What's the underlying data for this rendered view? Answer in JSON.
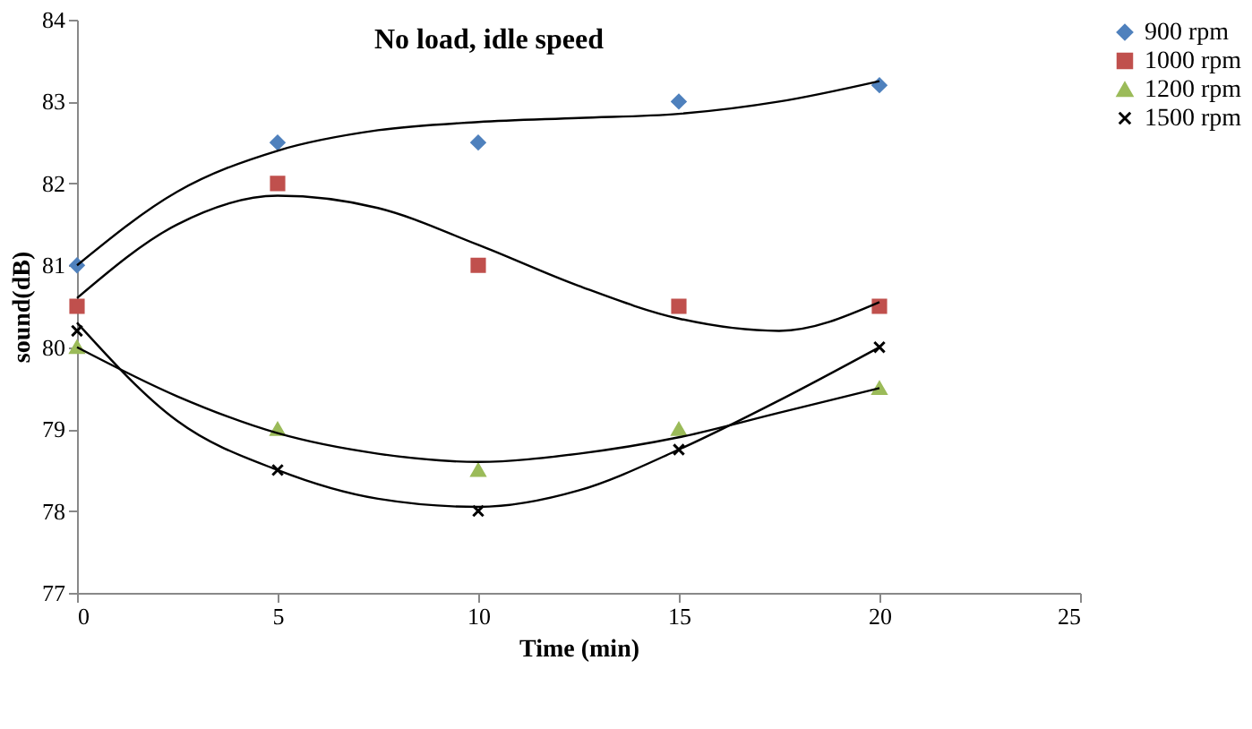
{
  "chart_data": {
    "type": "scatter",
    "title": "No load, idle speed",
    "xlabel": "Time (min)",
    "ylabel": "sound(dB)",
    "x": [
      0,
      5,
      10,
      15,
      20
    ],
    "series": [
      {
        "name": "900 rpm",
        "color": "#4f81bd",
        "marker": "diamond",
        "values": [
          81,
          82.5,
          82.5,
          83,
          83.2
        ]
      },
      {
        "name": "1000 rpm",
        "color": "#c0504d",
        "marker": "square",
        "values": [
          80.5,
          82,
          81,
          80.5,
          80.5
        ]
      },
      {
        "name": "1200 rpm",
        "color": "#9bbb59",
        "marker": "triangle",
        "values": [
          80,
          79,
          78.5,
          79,
          79.5
        ]
      },
      {
        "name": "1500 rpm",
        "color": "#000000",
        "marker": "cross",
        "values": [
          80.2,
          78.5,
          78,
          78.75,
          80
        ]
      },
      {
        "type": "line",
        "color": "#000000",
        "x": [
          0,
          2.5,
          5,
          7.5,
          10,
          12.5,
          15,
          17.5,
          20
        ],
        "values": [
          81.0,
          81.9,
          82.4,
          82.65,
          82.75,
          82.8,
          82.85,
          83.0,
          83.25
        ]
      },
      {
        "type": "line",
        "color": "#000000",
        "x": [
          0,
          2.5,
          5,
          7.5,
          10,
          12.5,
          15,
          17.5,
          20
        ],
        "values": [
          80.6,
          81.5,
          81.85,
          81.7,
          81.25,
          80.75,
          80.35,
          80.2,
          80.55
        ]
      },
      {
        "type": "line",
        "color": "#000000",
        "x": [
          0,
          2.5,
          5,
          7.5,
          10,
          12.5,
          15,
          17.5,
          20
        ],
        "values": [
          80.0,
          79.4,
          78.95,
          78.7,
          78.6,
          78.7,
          78.9,
          79.2,
          79.5
        ]
      },
      {
        "type": "line",
        "color": "#000000",
        "x": [
          0,
          2.5,
          5,
          7.5,
          10,
          12.5,
          15,
          17.5,
          20
        ],
        "values": [
          80.3,
          79.1,
          78.5,
          78.15,
          78.05,
          78.25,
          78.75,
          79.35,
          80.0
        ]
      }
    ],
    "xlim": [
      0,
      25
    ],
    "xticks": [
      0,
      5,
      10,
      15,
      20,
      25
    ],
    "ylim": [
      77,
      84
    ],
    "yticks": [
      77,
      78,
      79,
      80,
      81,
      82,
      83,
      84
    ],
    "grid": false,
    "legend": "right"
  }
}
